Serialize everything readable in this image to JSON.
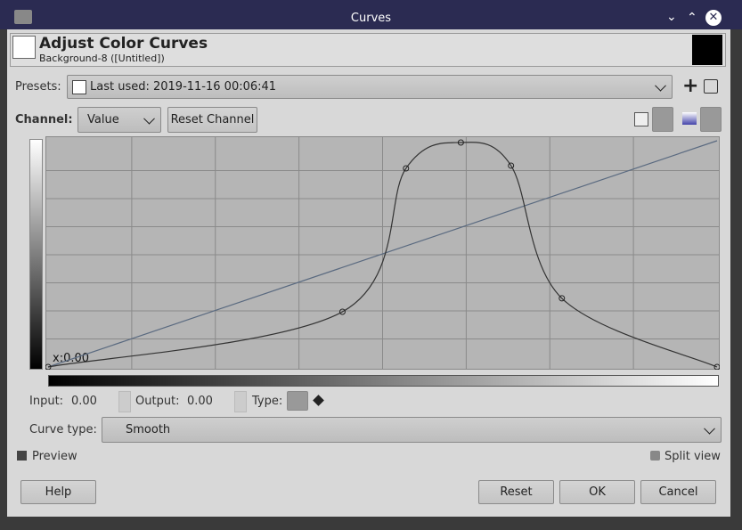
{
  "window": {
    "title": "Curves"
  },
  "header": {
    "title": "Adjust Color Curves",
    "subtitle": "Background-8 ([Untitled])"
  },
  "presets": {
    "label": "Presets:",
    "value": "Last used: 2019-11-16 00:06:41"
  },
  "channel": {
    "label": "Channel:",
    "value": "Value",
    "reset": "Reset Channel"
  },
  "graph": {
    "cursor": "x:0.00",
    "points": {
      "x": [
        0,
        0.44,
        0.535,
        0.617,
        0.692,
        0.768,
        1
      ],
      "y": [
        0,
        0.246,
        0.885,
        1,
        0.897,
        0.306,
        0
      ]
    }
  },
  "point_info": {
    "input_label": "Input:",
    "input": "0.00",
    "output_label": "Output:",
    "output": "0.00",
    "type_label": "Type:"
  },
  "curve_type": {
    "label": "Curve type:",
    "value": "Smooth"
  },
  "options": {
    "preview": "Preview",
    "split_view": "Split view"
  },
  "buttons": {
    "help": "Help",
    "reset": "Reset",
    "ok": "OK",
    "cancel": "Cancel"
  }
}
